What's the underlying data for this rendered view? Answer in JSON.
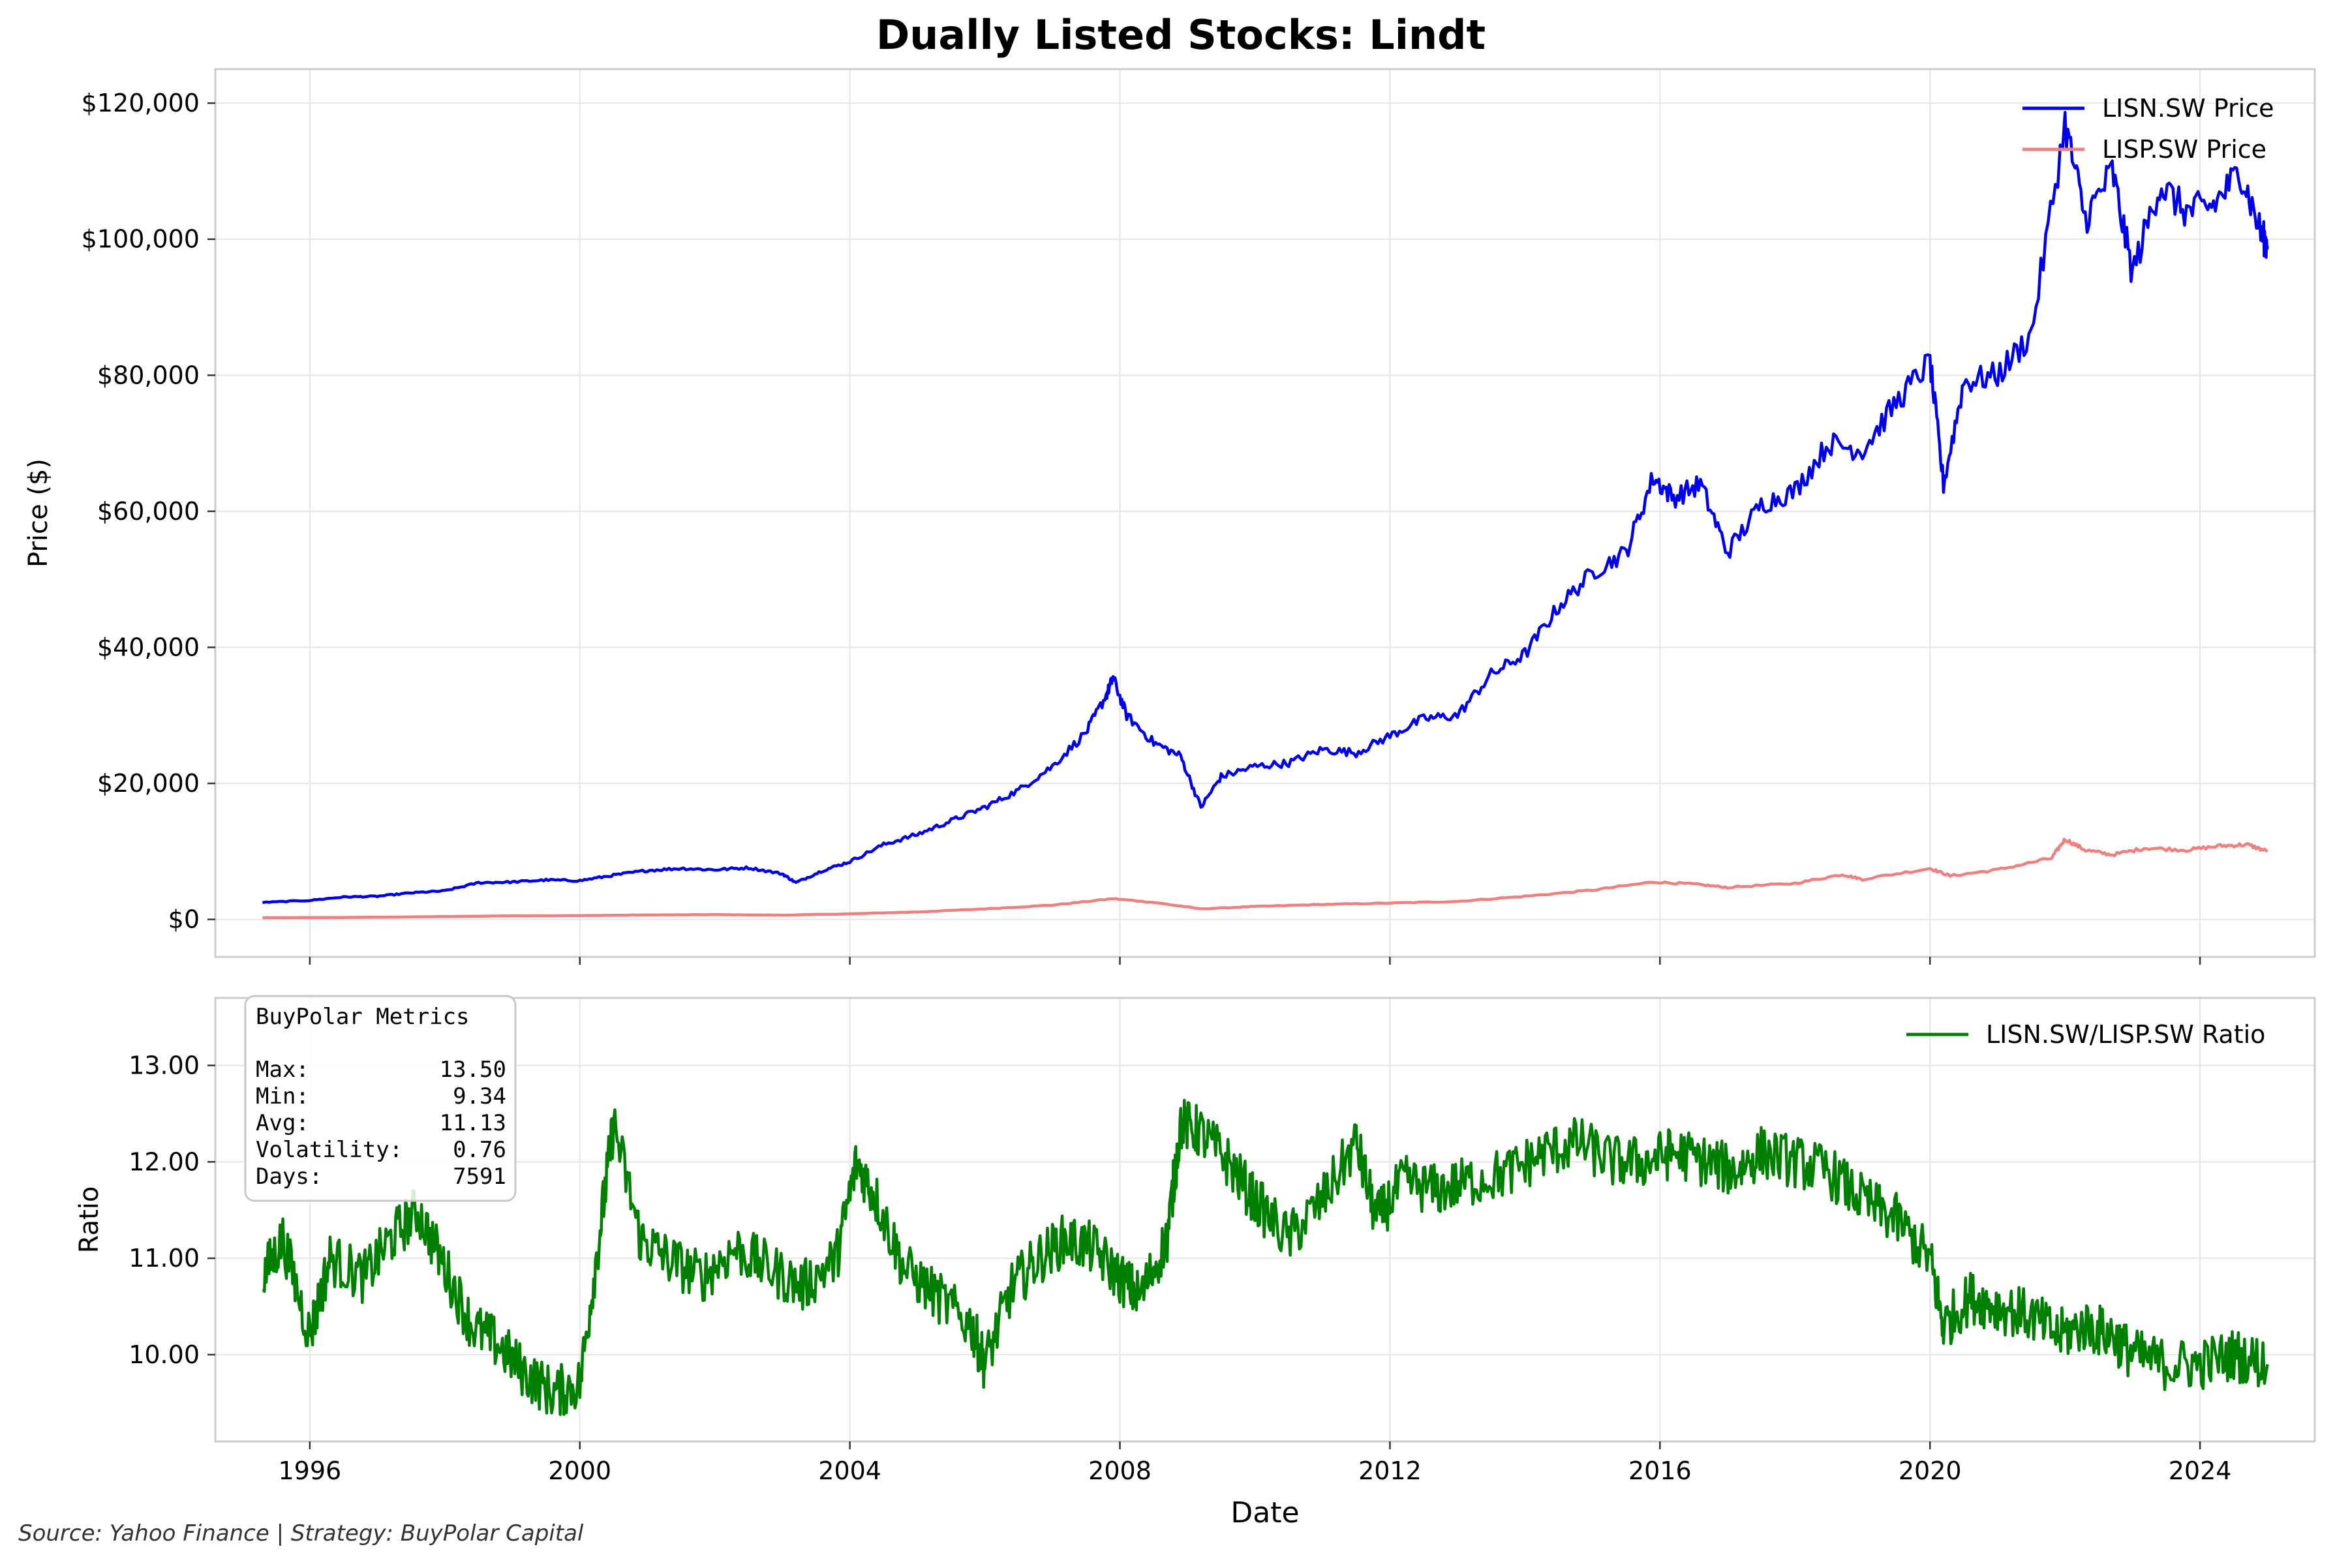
{
  "title": "Dually Listed Stocks: Lindt",
  "source_note": "Source: Yahoo Finance | Strategy: BuyPolar Capital",
  "colors": {
    "lisn": "#0000ee",
    "lisp": "#f08080",
    "ratio": "#008000",
    "grid": "#e6e6e6",
    "axes": "#cccccc"
  },
  "chart_data": [
    {
      "type": "line",
      "title": "Dually Listed Stocks: Lindt",
      "xlabel": "",
      "ylabel": "Price ($)",
      "xlim": [
        1994.6,
        2025.7
      ],
      "ylim": [
        -5500,
        125000
      ],
      "x_ticks": [
        1996,
        2000,
        2004,
        2008,
        2012,
        2016,
        2020,
        2024
      ],
      "y_ticks": [
        0,
        20000,
        40000,
        60000,
        80000,
        100000,
        120000
      ],
      "y_tick_labels": [
        "$0",
        "$20,000",
        "$40,000",
        "$60,000",
        "$80,000",
        "$100,000",
        "$120,000"
      ],
      "grid": true,
      "legend_position": "top-right",
      "series": [
        {
          "name": "LISN.SW Price",
          "points": [
            [
              1995.3,
              2500
            ],
            [
              1996.0,
              2800
            ],
            [
              1996.5,
              3300
            ],
            [
              1997.0,
              3400
            ],
            [
              1997.5,
              3900
            ],
            [
              1998.0,
              4200
            ],
            [
              1998.5,
              5400
            ],
            [
              1999.0,
              5500
            ],
            [
              1999.5,
              5800
            ],
            [
              2000.0,
              5700
            ],
            [
              2000.5,
              6500
            ],
            [
              2001.0,
              7200
            ],
            [
              2001.5,
              7500
            ],
            [
              2002.0,
              7300
            ],
            [
              2002.5,
              7600
            ],
            [
              2003.0,
              6700
            ],
            [
              2003.2,
              5400
            ],
            [
              2003.6,
              7200
            ],
            [
              2004.0,
              8500
            ],
            [
              2004.5,
              11000
            ],
            [
              2005.0,
              12500
            ],
            [
              2005.5,
              14500
            ],
            [
              2006.0,
              16500
            ],
            [
              2006.5,
              19000
            ],
            [
              2007.0,
              22500
            ],
            [
              2007.5,
              27500
            ],
            [
              2007.8,
              33000
            ],
            [
              2007.9,
              35500
            ],
            [
              2008.1,
              30000
            ],
            [
              2008.5,
              26000
            ],
            [
              2008.9,
              24000
            ],
            [
              2009.2,
              16500
            ],
            [
              2009.5,
              21000
            ],
            [
              2010.0,
              22500
            ],
            [
              2010.5,
              23000
            ],
            [
              2011.0,
              25000
            ],
            [
              2011.5,
              24500
            ],
            [
              2012.0,
              27000
            ],
            [
              2012.5,
              29500
            ],
            [
              2013.0,
              30000
            ],
            [
              2013.5,
              36000
            ],
            [
              2014.0,
              39000
            ],
            [
              2014.5,
              46000
            ],
            [
              2015.0,
              51000
            ],
            [
              2015.5,
              54000
            ],
            [
              2015.9,
              65000
            ],
            [
              2016.2,
              62000
            ],
            [
              2016.6,
              64000
            ],
            [
              2017.0,
              54000
            ],
            [
              2017.5,
              61000
            ],
            [
              2018.0,
              63000
            ],
            [
              2018.5,
              70000
            ],
            [
              2019.0,
              69000
            ],
            [
              2019.5,
              76000
            ],
            [
              2020.0,
              82000
            ],
            [
              2020.2,
              64000
            ],
            [
              2020.5,
              79000
            ],
            [
              2021.0,
              80000
            ],
            [
              2021.5,
              86000
            ],
            [
              2022.0,
              117000
            ],
            [
              2022.3,
              103000
            ],
            [
              2022.7,
              110000
            ],
            [
              2023.0,
              95000
            ],
            [
              2023.4,
              108000
            ],
            [
              2023.8,
              104000
            ],
            [
              2024.2,
              105000
            ],
            [
              2024.6,
              110000
            ],
            [
              2024.9,
              101000
            ],
            [
              2025.0,
              99000
            ]
          ]
        },
        {
          "name": "LISP.SW Price",
          "points": [
            [
              1995.3,
              250
            ],
            [
              1996.0,
              270
            ],
            [
              1997.0,
              320
            ],
            [
              1998.0,
              420
            ],
            [
              1999.0,
              530
            ],
            [
              2000.0,
              560
            ],
            [
              2001.0,
              660
            ],
            [
              2002.0,
              700
            ],
            [
              2003.0,
              630
            ],
            [
              2004.0,
              820
            ],
            [
              2005.0,
              1100
            ],
            [
              2006.0,
              1550
            ],
            [
              2007.0,
              2100
            ],
            [
              2007.9,
              3050
            ],
            [
              2008.5,
              2500
            ],
            [
              2009.2,
              1550
            ],
            [
              2010.0,
              1900
            ],
            [
              2011.0,
              2200
            ],
            [
              2012.0,
              2400
            ],
            [
              2013.0,
              2650
            ],
            [
              2014.0,
              3400
            ],
            [
              2015.0,
              4300
            ],
            [
              2015.9,
              5500
            ],
            [
              2016.5,
              5200
            ],
            [
              2017.0,
              4700
            ],
            [
              2018.0,
              5300
            ],
            [
              2018.7,
              6600
            ],
            [
              2019.0,
              5900
            ],
            [
              2020.0,
              7500
            ],
            [
              2020.3,
              6400
            ],
            [
              2021.0,
              7300
            ],
            [
              2021.8,
              9000
            ],
            [
              2022.0,
              11800
            ],
            [
              2022.3,
              10200
            ],
            [
              2022.7,
              9500
            ],
            [
              2023.2,
              10500
            ],
            [
              2023.8,
              10200
            ],
            [
              2024.3,
              10800
            ],
            [
              2024.7,
              11000
            ],
            [
              2025.0,
              10000
            ]
          ]
        }
      ]
    },
    {
      "type": "line",
      "xlabel": "Date",
      "ylabel": "Ratio",
      "xlim": [
        1994.6,
        2025.7
      ],
      "ylim": [
        9.1,
        13.7
      ],
      "x_ticks": [
        1996,
        2000,
        2004,
        2008,
        2012,
        2016,
        2020,
        2024
      ],
      "x_tick_labels": [
        "1996",
        "2000",
        "2004",
        "2008",
        "2012",
        "2016",
        "2020",
        "2024"
      ],
      "y_ticks": [
        10,
        11,
        12,
        13
      ],
      "y_tick_labels": [
        "10.00",
        "11.00",
        "12.00",
        "13.00"
      ],
      "grid": true,
      "legend_position": "top-right",
      "series": [
        {
          "name": "LISN.SW/LISP.SW Ratio",
          "points": [
            [
              1995.3,
              10.8
            ],
            [
              1995.6,
              11.2
            ],
            [
              1996.0,
              10.2
            ],
            [
              1996.3,
              11.0
            ],
            [
              1996.8,
              10.8
            ],
            [
              1997.2,
              11.2
            ],
            [
              1997.6,
              11.5
            ],
            [
              1998.0,
              10.9
            ],
            [
              1998.4,
              10.3
            ],
            [
              1998.8,
              10.1
            ],
            [
              1999.2,
              9.8
            ],
            [
              1999.6,
              9.6
            ],
            [
              2000.0,
              9.7
            ],
            [
              2000.3,
              11.3
            ],
            [
              2000.5,
              12.4
            ],
            [
              2000.9,
              11.2
            ],
            [
              2001.3,
              11.0
            ],
            [
              2001.8,
              10.8
            ],
            [
              2002.3,
              11.1
            ],
            [
              2002.8,
              10.9
            ],
            [
              2003.3,
              10.7
            ],
            [
              2003.8,
              11.0
            ],
            [
              2004.1,
              12.0
            ],
            [
              2004.4,
              11.6
            ],
            [
              2004.8,
              10.9
            ],
            [
              2005.3,
              10.6
            ],
            [
              2005.8,
              10.3
            ],
            [
              2006.0,
              9.9
            ],
            [
              2006.4,
              10.7
            ],
            [
              2006.8,
              11.0
            ],
            [
              2007.2,
              11.2
            ],
            [
              2007.6,
              11.1
            ],
            [
              2008.0,
              10.8
            ],
            [
              2008.3,
              10.6
            ],
            [
              2008.7,
              11.2
            ],
            [
              2008.9,
              12.4
            ],
            [
              2009.2,
              12.3
            ],
            [
              2009.6,
              12.0
            ],
            [
              2010.0,
              11.6
            ],
            [
              2010.5,
              11.2
            ],
            [
              2011.0,
              11.6
            ],
            [
              2011.5,
              12.2
            ],
            [
              2011.8,
              11.4
            ],
            [
              2012.2,
              11.8
            ],
            [
              2012.7,
              11.7
            ],
            [
              2013.2,
              11.8
            ],
            [
              2013.8,
              11.9
            ],
            [
              2014.3,
              12.1
            ],
            [
              2014.8,
              12.2
            ],
            [
              2015.3,
              12.0
            ],
            [
              2015.8,
              12.0
            ],
            [
              2016.2,
              12.1
            ],
            [
              2016.7,
              12.0
            ],
            [
              2017.1,
              11.9
            ],
            [
              2017.5,
              12.1
            ],
            [
              2018.0,
              12.0
            ],
            [
              2018.5,
              11.9
            ],
            [
              2019.0,
              11.6
            ],
            [
              2019.5,
              11.4
            ],
            [
              2020.0,
              11.0
            ],
            [
              2020.2,
              10.3
            ],
            [
              2020.6,
              10.6
            ],
            [
              2021.0,
              10.5
            ],
            [
              2021.5,
              10.4
            ],
            [
              2021.9,
              10.2
            ],
            [
              2022.3,
              10.3
            ],
            [
              2022.7,
              10.2
            ],
            [
              2023.0,
              10.0
            ],
            [
              2023.5,
              9.9
            ],
            [
              2024.0,
              9.9
            ],
            [
              2024.5,
              10.0
            ],
            [
              2025.0,
              9.9
            ]
          ]
        }
      ]
    }
  ],
  "metrics_box": {
    "title": "BuyPolar Metrics",
    "rows": [
      {
        "label": "Max:",
        "value": "13.50"
      },
      {
        "label": "Min:",
        "value": "9.34"
      },
      {
        "label": "Avg:",
        "value": "11.13"
      },
      {
        "label": "Volatility:",
        "value": "0.76"
      },
      {
        "label": "Days:",
        "value": "7591"
      }
    ]
  }
}
